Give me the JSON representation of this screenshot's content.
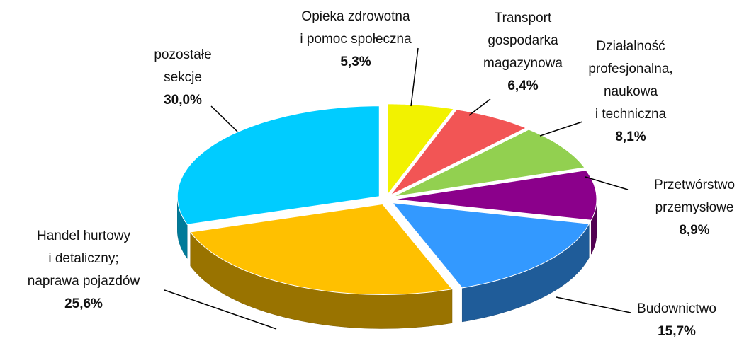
{
  "chart_data": {
    "type": "pie",
    "categories": [
      [
        "Opieka zdrowotna",
        "i pomoc społeczna"
      ],
      [
        "Transport",
        "gospodarka",
        "magazynowa"
      ],
      [
        "Działalność",
        "profesjonalna,",
        "naukowa",
        "i techniczna"
      ],
      [
        "Przetwórstwo",
        "przemysłowe"
      ],
      [
        "Budownictwo"
      ],
      [
        "Handel hurtowy",
        "i detaliczny;",
        "naprawa pojazdów"
      ],
      [
        "pozostałe",
        "sekcje"
      ]
    ],
    "values": [
      5.3,
      6.4,
      8.1,
      8.9,
      15.7,
      25.6,
      30.0
    ],
    "value_labels": [
      "5,3%",
      "6,4%",
      "8,1%",
      "8,9%",
      "15,7%",
      "25,6%",
      "30,0%"
    ],
    "colors": [
      "#f2f200",
      "#f25555",
      "#92d050",
      "#8b008b",
      "#3399ff",
      "#ffc000",
      "#00ccff"
    ]
  }
}
